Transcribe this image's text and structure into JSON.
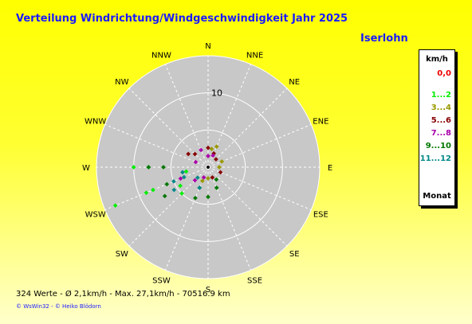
{
  "header": {
    "title": "Verteilung Windrichtung/Windgeschwindigkeit  Jahr 2025",
    "location": "Iserlohn"
  },
  "legend": {
    "unit": "km/h",
    "items": [
      {
        "label": "0,0",
        "color": "#ee0000"
      },
      {
        "label": "1...2",
        "color": "#00ee00"
      },
      {
        "label": "3...4",
        "color": "#999900"
      },
      {
        "label": "5...6",
        "color": "#880000"
      },
      {
        "label": "7...8",
        "color": "#aa00aa"
      },
      {
        "label": "9...10",
        "color": "#007700"
      },
      {
        "label": "11...12",
        "color": "#008888"
      }
    ],
    "footer_label": "Monat"
  },
  "footer": {
    "stats": "324 Werte   -   Ø 2,1km/h  -  Max. 27,1km/h   -   70516.9 km",
    "credit": "© WsWin32  -  © Heiko Blödorn"
  },
  "chart_data": {
    "type": "scatter",
    "subtype": "polar-wind-rose",
    "directions": [
      "N",
      "NNE",
      "NE",
      "ENE",
      "E",
      "ESE",
      "SE",
      "SSE",
      "S",
      "SSW",
      "SW",
      "WSW",
      "W",
      "WNW",
      "NW",
      "NNW"
    ],
    "radial_tick_label": "10",
    "radial_max": 15,
    "grid": true,
    "legend_position": "right",
    "series": [
      {
        "name": "1...2",
        "color": "#00ee00",
        "points": [
          [
            247.5,
            13.5
          ],
          [
            247.5,
            9
          ],
          [
            247.5,
            8
          ],
          [
            270,
            10
          ],
          [
            270,
            8
          ],
          [
            258.75,
            3
          ],
          [
            225,
            5
          ],
          [
            236.25,
            4.5
          ]
        ]
      },
      {
        "name": "3...4",
        "color": "#999900",
        "points": [
          [
            22.5,
            3
          ],
          [
            11.25,
            2.5
          ],
          [
            67.5,
            2
          ],
          [
            90,
            1.5
          ],
          [
            202.5,
            2
          ],
          [
            180,
            1.5
          ]
        ]
      },
      {
        "name": "5...6",
        "color": "#880000",
        "points": [
          [
            315,
            2.5
          ],
          [
            303.75,
            3.2
          ],
          [
            0,
            2.6
          ],
          [
            22.5,
            2
          ],
          [
            157.5,
            1.5
          ],
          [
            112.5,
            1.8
          ],
          [
            45,
            1.5
          ]
        ]
      },
      {
        "name": "7...8",
        "color": "#aa00aa",
        "points": [
          [
            292.5,
            1.8
          ],
          [
            337.5,
            2.5
          ],
          [
            22.5,
            1.7
          ],
          [
            202.5,
            1.5
          ],
          [
            247.5,
            4
          ],
          [
            225,
            2.5
          ],
          [
            0,
            1.5
          ]
        ]
      },
      {
        "name": "9...10",
        "color": "#007700",
        "points": [
          [
            270,
            8
          ],
          [
            270,
            6
          ],
          [
            247.5,
            6
          ],
          [
            236.25,
            7
          ],
          [
            202.5,
            3
          ],
          [
            202.5,
            4.5
          ],
          [
            180,
            4
          ],
          [
            146.25,
            2
          ],
          [
            157.5,
            3
          ]
        ]
      },
      {
        "name": "11...12",
        "color": "#008888",
        "points": [
          [
            247.5,
            5
          ],
          [
            247.5,
            3.5
          ],
          [
            258.75,
            3.5
          ],
          [
            236.25,
            5.5
          ],
          [
            225,
            2
          ],
          [
            202.5,
            3
          ]
        ]
      }
    ]
  }
}
